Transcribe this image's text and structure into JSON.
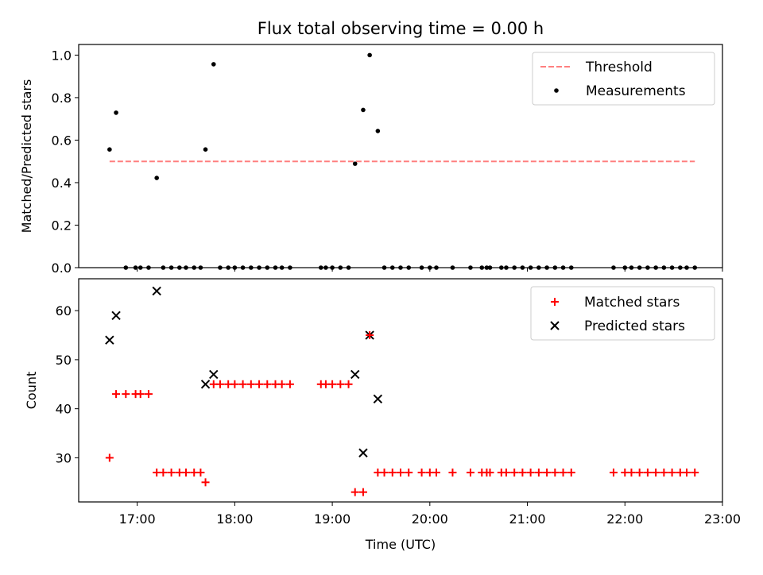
{
  "chart_data": [
    {
      "type": "scatter",
      "title": "Flux total observing time = 0.00 h",
      "xlabel": "",
      "ylabel": "Matched/Predicted stars",
      "ylim": [
        0,
        1.05
      ],
      "yticks": [
        "0.0",
        "0.2",
        "0.4",
        "0.6",
        "0.8",
        "1.0"
      ],
      "legend_position": "top-right",
      "colors": {
        "threshold": "#ff7f7f",
        "measurements": "#000000"
      },
      "threshold": {
        "name": "Threshold",
        "value": 0.5,
        "x_start": "16:43",
        "x_end": "22:43"
      },
      "series": [
        {
          "name": "Measurements",
          "points": [
            [
              "16:43",
              0.556
            ],
            [
              "16:47",
              0.729
            ],
            [
              "16:53",
              0.0
            ],
            [
              "16:59",
              0.0
            ],
            [
              "17:02",
              0.0
            ],
            [
              "17:07",
              0.0
            ],
            [
              "17:12",
              0.422
            ],
            [
              "17:16",
              0.0
            ],
            [
              "17:21",
              0.0
            ],
            [
              "17:26",
              0.0
            ],
            [
              "17:30",
              0.0
            ],
            [
              "17:35",
              0.0
            ],
            [
              "17:39",
              0.0
            ],
            [
              "17:42",
              0.556
            ],
            [
              "17:47",
              0.957
            ],
            [
              "17:51",
              0.0
            ],
            [
              "17:56",
              0.0
            ],
            [
              "18:00",
              0.0
            ],
            [
              "18:05",
              0.0
            ],
            [
              "18:10",
              0.0
            ],
            [
              "18:15",
              0.0
            ],
            [
              "18:20",
              0.0
            ],
            [
              "18:25",
              0.0
            ],
            [
              "18:29",
              0.0
            ],
            [
              "18:34",
              0.0
            ],
            [
              "18:53",
              0.0
            ],
            [
              "18:56",
              0.0
            ],
            [
              "19:00",
              0.0
            ],
            [
              "19:05",
              0.0
            ],
            [
              "19:10",
              0.0
            ],
            [
              "19:14",
              0.489
            ],
            [
              "19:19",
              0.742
            ],
            [
              "19:23",
              1.0
            ],
            [
              "19:28",
              0.643
            ],
            [
              "19:32",
              0.0
            ],
            [
              "19:37",
              0.0
            ],
            [
              "19:42",
              0.0
            ],
            [
              "19:47",
              0.0
            ],
            [
              "19:55",
              0.0
            ],
            [
              "20:00",
              0.0
            ],
            [
              "20:04",
              0.0
            ],
            [
              "20:14",
              0.0
            ],
            [
              "20:25",
              0.0
            ],
            [
              "20:32",
              0.0
            ],
            [
              "20:35",
              0.0
            ],
            [
              "20:37",
              0.0
            ],
            [
              "20:44",
              0.0
            ],
            [
              "20:47",
              0.0
            ],
            [
              "20:52",
              0.0
            ],
            [
              "20:57",
              0.0
            ],
            [
              "21:02",
              0.0
            ],
            [
              "21:07",
              0.0
            ],
            [
              "21:12",
              0.0
            ],
            [
              "21:17",
              0.0
            ],
            [
              "21:22",
              0.0
            ],
            [
              "21:27",
              0.0
            ],
            [
              "21:53",
              0.0
            ],
            [
              "22:00",
              0.0
            ],
            [
              "22:04",
              0.0
            ],
            [
              "22:09",
              0.0
            ],
            [
              "22:14",
              0.0
            ],
            [
              "22:19",
              0.0
            ],
            [
              "22:24",
              0.0
            ],
            [
              "22:29",
              0.0
            ],
            [
              "22:34",
              0.0
            ],
            [
              "22:38",
              0.0
            ],
            [
              "22:43",
              0.0
            ]
          ]
        }
      ]
    },
    {
      "type": "scatter",
      "title": "",
      "xlabel": "Time (UTC)",
      "ylabel": "Count",
      "xlim": [
        "16:24",
        "23:00"
      ],
      "xticks": [
        "17:00",
        "18:00",
        "19:00",
        "20:00",
        "21:00",
        "22:00",
        "23:00"
      ],
      "ylim": [
        21,
        66.5
      ],
      "yticks": [
        "30",
        "40",
        "50",
        "60"
      ],
      "legend_position": "top-right",
      "colors": {
        "matched": "#ff0000",
        "predicted": "#000000"
      },
      "series": [
        {
          "name": "Matched stars",
          "marker": "+",
          "points": [
            [
              "16:43",
              30
            ],
            [
              "16:47",
              43
            ],
            [
              "16:53",
              43
            ],
            [
              "16:59",
              43
            ],
            [
              "17:02",
              43
            ],
            [
              "17:07",
              43
            ],
            [
              "17:12",
              27
            ],
            [
              "17:16",
              27
            ],
            [
              "17:21",
              27
            ],
            [
              "17:26",
              27
            ],
            [
              "17:30",
              27
            ],
            [
              "17:35",
              27
            ],
            [
              "17:39",
              27
            ],
            [
              "17:42",
              25
            ],
            [
              "17:47",
              45
            ],
            [
              "17:51",
              45
            ],
            [
              "17:56",
              45
            ],
            [
              "18:00",
              45
            ],
            [
              "18:05",
              45
            ],
            [
              "18:10",
              45
            ],
            [
              "18:15",
              45
            ],
            [
              "18:20",
              45
            ],
            [
              "18:25",
              45
            ],
            [
              "18:29",
              45
            ],
            [
              "18:34",
              45
            ],
            [
              "18:53",
              45
            ],
            [
              "18:56",
              45
            ],
            [
              "19:00",
              45
            ],
            [
              "19:05",
              45
            ],
            [
              "19:10",
              45
            ],
            [
              "19:14",
              23
            ],
            [
              "19:19",
              23
            ],
            [
              "19:23",
              55
            ],
            [
              "19:28",
              27
            ],
            [
              "19:32",
              27
            ],
            [
              "19:37",
              27
            ],
            [
              "19:42",
              27
            ],
            [
              "19:47",
              27
            ],
            [
              "19:55",
              27
            ],
            [
              "20:00",
              27
            ],
            [
              "20:04",
              27
            ],
            [
              "20:14",
              27
            ],
            [
              "20:25",
              27
            ],
            [
              "20:32",
              27
            ],
            [
              "20:35",
              27
            ],
            [
              "20:37",
              27
            ],
            [
              "20:44",
              27
            ],
            [
              "20:47",
              27
            ],
            [
              "20:52",
              27
            ],
            [
              "20:57",
              27
            ],
            [
              "21:02",
              27
            ],
            [
              "21:07",
              27
            ],
            [
              "21:12",
              27
            ],
            [
              "21:17",
              27
            ],
            [
              "21:22",
              27
            ],
            [
              "21:27",
              27
            ],
            [
              "21:53",
              27
            ],
            [
              "22:00",
              27
            ],
            [
              "22:04",
              27
            ],
            [
              "22:09",
              27
            ],
            [
              "22:14",
              27
            ],
            [
              "22:19",
              27
            ],
            [
              "22:24",
              27
            ],
            [
              "22:29",
              27
            ],
            [
              "22:34",
              27
            ],
            [
              "22:38",
              27
            ],
            [
              "22:43",
              27
            ]
          ]
        },
        {
          "name": "Predicted stars",
          "marker": "x",
          "points": [
            [
              "16:43",
              54
            ],
            [
              "16:47",
              59
            ],
            [
              "17:12",
              64
            ],
            [
              "17:42",
              45
            ],
            [
              "17:47",
              47
            ],
            [
              "19:14",
              47
            ],
            [
              "19:19",
              31
            ],
            [
              "19:23",
              55
            ],
            [
              "19:28",
              42
            ]
          ]
        }
      ]
    }
  ]
}
